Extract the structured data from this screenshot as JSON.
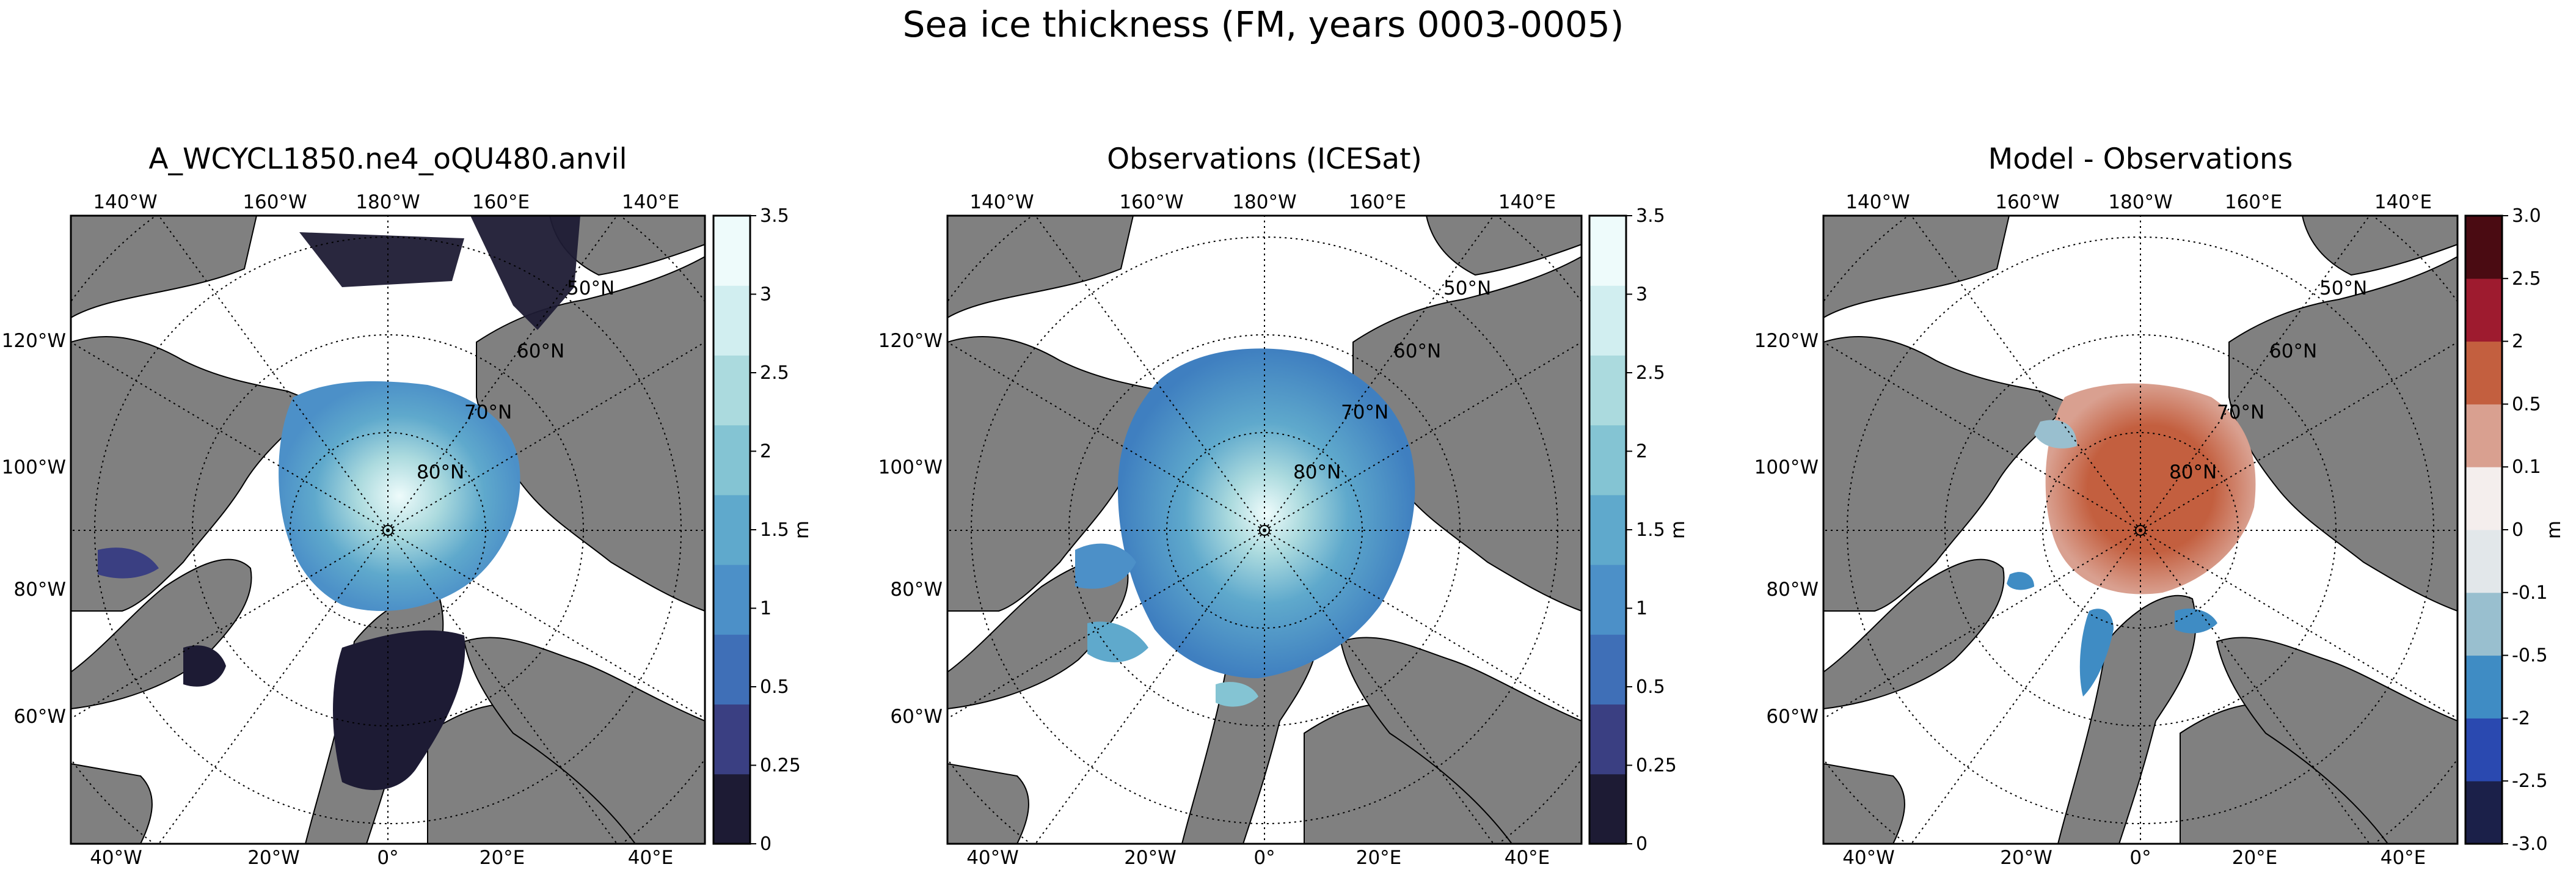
{
  "figure": {
    "title": "Sea ice thickness (FM, years 0003-0005)"
  },
  "panels": [
    {
      "title": "A_WCYCL1850.ne4_oQU480.anvil",
      "colorbar": {
        "labels": [
          "0",
          "0.25",
          "0.5",
          "1",
          "1.5",
          "2",
          "2.5",
          "3",
          "3.5"
        ],
        "colors": [
          "#1d1b34",
          "#3a3f82",
          "#3f6fb7",
          "#4c90c8",
          "#5fa9cc",
          "#84c4d3",
          "#abdade",
          "#d1eef0",
          "#eefbfb"
        ],
        "unit": "m"
      }
    },
    {
      "title": "Observations (ICESat)",
      "colorbar": {
        "labels": [
          "0",
          "0.25",
          "0.5",
          "1",
          "1.5",
          "2",
          "2.5",
          "3",
          "3.5"
        ],
        "colors": [
          "#1d1b34",
          "#3a3f82",
          "#3f6fb7",
          "#4c90c8",
          "#5fa9cc",
          "#84c4d3",
          "#abdade",
          "#d1eef0",
          "#eefbfb"
        ],
        "unit": "m"
      }
    },
    {
      "title": "Model - Observations",
      "colorbar": {
        "labels": [
          "-3.0",
          "-2.5",
          "-2",
          "-0.5",
          "-0.1",
          "0",
          "0.1",
          "0.5",
          "2",
          "2.5",
          "3.0"
        ],
        "colors": [
          "#1b2049",
          "#2a49b0",
          "#3f8cc4",
          "#99bfcf",
          "#e2e7ea",
          "#f4eeed",
          "#d9a090",
          "#c35f3f",
          "#9e1b2f",
          "#4a0b12"
        ],
        "unit": "m"
      }
    }
  ],
  "map_labels": {
    "top_longitudes": [
      "140°W",
      "160°W",
      "180°W",
      "160°E",
      "140°E"
    ],
    "left_latitudes": [
      "120°W",
      "100°W",
      "80°W",
      "60°W"
    ],
    "bottom_longitudes": [
      "40°W",
      "20°W",
      "0°",
      "20°E",
      "40°E"
    ],
    "latitude_rings": [
      "50°N",
      "60°N",
      "70°N",
      "80°N"
    ]
  },
  "colors": {
    "land": "#808080",
    "ocean": "#ffffff",
    "model_thick_ice": "#1d1b34",
    "obs_ice": "#4c90c8",
    "diff_positive": "#c35f3f",
    "diff_positive_light": "#d9a090",
    "diff_negative": "#3f6fb7"
  },
  "chart_data": [
    {
      "type": "heatmap",
      "title": "A_WCYCL1850.ne4_oQU480.anvil",
      "projection": "north polar stereographic",
      "variable": "sea ice thickness",
      "units": "m",
      "colorbar_levels": [
        0,
        0.25,
        0.5,
        1,
        1.5,
        2,
        2.5,
        3,
        3.5
      ],
      "description_regions": [
        {
          "region": "central Arctic near pole",
          "thickness_range": [
            2.5,
            3.5
          ]
        },
        {
          "region": "Beaufort / Canadian sector",
          "thickness_range": [
            1.5,
            2.5
          ]
        },
        {
          "region": "Greenland / Barents / Nordic seas",
          "thickness_range": [
            0,
            0.25
          ]
        },
        {
          "region": "Bering Sea / North Pacific",
          "thickness_range": [
            0,
            0.25
          ]
        }
      ]
    },
    {
      "type": "heatmap",
      "title": "Observations (ICESat)",
      "projection": "north polar stereographic",
      "variable": "sea ice thickness",
      "units": "m",
      "colorbar_levels": [
        0,
        0.25,
        0.5,
        1,
        1.5,
        2,
        2.5,
        3,
        3.5
      ],
      "description_regions": [
        {
          "region": "central Arctic near pole",
          "thickness_range": [
            2.5,
            3.5
          ]
        },
        {
          "region": "Arctic basin",
          "thickness_range": [
            1,
            2
          ]
        },
        {
          "region": "Canadian Archipelago margins",
          "thickness_range": [
            0.5,
            1
          ]
        }
      ]
    },
    {
      "type": "heatmap",
      "title": "Model - Observations",
      "projection": "north polar stereographic",
      "variable": "sea ice thickness difference",
      "units": "m",
      "colorbar_levels": [
        -3.0,
        -2.5,
        -2,
        -0.5,
        -0.1,
        0,
        0.1,
        0.5,
        2,
        2.5,
        3.0
      ],
      "description_regions": [
        {
          "region": "central Arctic basin",
          "difference_range": [
            0.5,
            2
          ]
        },
        {
          "region": "Arctic basin margins",
          "difference_range": [
            0.1,
            0.5
          ]
        },
        {
          "region": "Greenland / Barents margins",
          "difference_range": [
            -2,
            -0.5
          ]
        }
      ]
    }
  ]
}
